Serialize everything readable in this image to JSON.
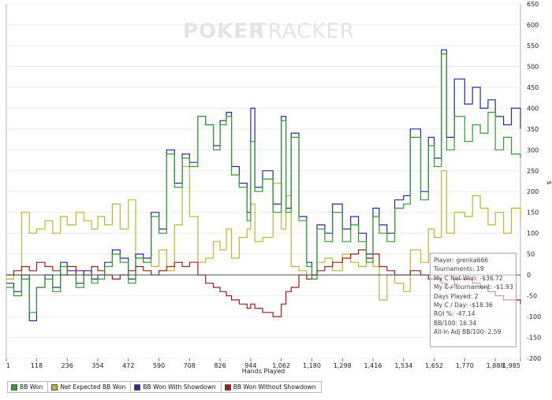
{
  "chart_data": {
    "type": "line",
    "title": "",
    "watermark": {
      "part1": "POKER",
      "part2": "TRACKER"
    },
    "xlabel": "Hands Played",
    "ylabel": "$",
    "xlim": [
      1,
      1985
    ],
    "ylim": [
      -200,
      650
    ],
    "x_ticks": [
      1,
      118,
      236,
      354,
      472,
      590,
      708,
      826,
      944,
      1062,
      1180,
      1298,
      1416,
      1534,
      1652,
      1770,
      1888,
      1985
    ],
    "x_tick_labels": [
      "1",
      "118",
      "236",
      "354",
      "472",
      "590",
      "708",
      "826",
      "944",
      "1,062",
      "1,180",
      "1,298",
      "1,416",
      "1,534",
      "1,652",
      "1,770",
      "1,888",
      "1,985"
    ],
    "y_ticks": [
      -200,
      -150,
      -100,
      -50,
      0,
      50,
      100,
      150,
      200,
      250,
      300,
      350,
      400,
      450,
      500,
      550,
      600,
      650
    ],
    "series": [
      {
        "name": "BB Won",
        "color": "#2e9e2e",
        "x": [
          1,
          30,
          60,
          90,
          118,
          150,
          180,
          210,
          236,
          270,
          300,
          330,
          354,
          380,
          410,
          440,
          472,
          500,
          530,
          560,
          590,
          620,
          650,
          680,
          708,
          740,
          770,
          800,
          826,
          850,
          870,
          900,
          930,
          944,
          960,
          990,
          1030,
          1062,
          1080,
          1100,
          1130,
          1160,
          1180,
          1200,
          1230,
          1260,
          1298,
          1330,
          1360,
          1390,
          1416,
          1440,
          1470,
          1500,
          1534,
          1560,
          1600,
          1630,
          1652,
          1680,
          1700,
          1730,
          1770,
          1800,
          1830,
          1860,
          1888,
          1920,
          1950,
          1985
        ],
        "values": [
          -30,
          -50,
          -10,
          -90,
          -30,
          -10,
          -40,
          20,
          0,
          -30,
          0,
          -20,
          -10,
          20,
          50,
          30,
          -20,
          40,
          30,
          140,
          100,
          290,
          210,
          280,
          260,
          380,
          360,
          300,
          360,
          380,
          240,
          210,
          130,
          320,
          200,
          230,
          150,
          370,
          150,
          330,
          130,
          20,
          -10,
          110,
          80,
          150,
          80,
          120,
          80,
          30,
          140,
          100,
          80,
          160,
          170,
          330,
          180,
          310,
          260,
          530,
          300,
          380,
          320,
          360,
          340,
          390,
          300,
          330,
          290,
          280
        ]
      },
      {
        "name": "Net Expected BB Won",
        "color": "#b8b830",
        "x": [
          1,
          30,
          60,
          90,
          118,
          150,
          180,
          210,
          236,
          270,
          300,
          330,
          354,
          380,
          410,
          440,
          472,
          500,
          530,
          560,
          590,
          620,
          650,
          680,
          708,
          740,
          770,
          800,
          826,
          850,
          870,
          900,
          930,
          944,
          960,
          990,
          1030,
          1062,
          1080,
          1100,
          1130,
          1160,
          1180,
          1200,
          1230,
          1260,
          1298,
          1330,
          1360,
          1390,
          1416,
          1440,
          1470,
          1500,
          1534,
          1560,
          1600,
          1630,
          1652,
          1680,
          1700,
          1730,
          1770,
          1800,
          1830,
          1860,
          1888,
          1920,
          1950,
          1985
        ],
        "values": [
          -10,
          0,
          150,
          100,
          110,
          130,
          100,
          140,
          120,
          150,
          130,
          110,
          140,
          120,
          170,
          110,
          180,
          40,
          30,
          20,
          60,
          10,
          120,
          260,
          140,
          30,
          40,
          80,
          60,
          110,
          40,
          90,
          110,
          170,
          80,
          90,
          220,
          110,
          190,
          20,
          10,
          0,
          -10,
          30,
          40,
          10,
          50,
          30,
          20,
          40,
          20,
          -60,
          0,
          -20,
          -40,
          60,
          30,
          110,
          90,
          250,
          100,
          150,
          140,
          190,
          160,
          120,
          150,
          100,
          160,
          130
        ]
      },
      {
        "name": "BB Won With Showdown",
        "color": "#2a2a9a",
        "x": [
          1,
          30,
          60,
          90,
          118,
          150,
          180,
          210,
          236,
          270,
          300,
          330,
          354,
          380,
          410,
          440,
          472,
          500,
          530,
          560,
          590,
          620,
          650,
          680,
          708,
          740,
          770,
          800,
          826,
          850,
          870,
          900,
          930,
          944,
          960,
          990,
          1030,
          1062,
          1080,
          1100,
          1130,
          1160,
          1180,
          1200,
          1230,
          1260,
          1298,
          1330,
          1360,
          1390,
          1416,
          1440,
          1470,
          1500,
          1534,
          1560,
          1600,
          1630,
          1652,
          1680,
          1700,
          1730,
          1770,
          1800,
          1830,
          1860,
          1888,
          1920,
          1950,
          1985
        ],
        "values": [
          -20,
          -40,
          0,
          -110,
          -30,
          0,
          -30,
          30,
          10,
          -20,
          10,
          -10,
          0,
          30,
          60,
          40,
          -10,
          50,
          40,
          150,
          110,
          300,
          220,
          290,
          270,
          380,
          360,
          310,
          370,
          390,
          260,
          220,
          150,
          400,
          210,
          250,
          170,
          380,
          160,
          340,
          140,
          30,
          0,
          120,
          100,
          170,
          110,
          140,
          100,
          50,
          160,
          120,
          100,
          180,
          190,
          350,
          200,
          330,
          280,
          540,
          330,
          470,
          410,
          450,
          400,
          420,
          380,
          360,
          400,
          350
        ]
      },
      {
        "name": "BB Won Without Showdown",
        "color": "#9a1e1e",
        "x": [
          1,
          30,
          60,
          90,
          118,
          150,
          180,
          210,
          236,
          270,
          300,
          330,
          354,
          380,
          410,
          440,
          472,
          500,
          530,
          560,
          590,
          620,
          650,
          680,
          708,
          740,
          770,
          800,
          826,
          850,
          870,
          900,
          930,
          944,
          960,
          990,
          1030,
          1062,
          1080,
          1100,
          1130,
          1160,
          1180,
          1200,
          1230,
          1260,
          1298,
          1330,
          1360,
          1390,
          1416,
          1440,
          1470,
          1500,
          1534,
          1560,
          1600,
          1630,
          1652,
          1680,
          1700,
          1730,
          1770,
          1800,
          1830,
          1860,
          1888,
          1920,
          1950,
          1985
        ],
        "values": [
          0,
          10,
          20,
          10,
          30,
          20,
          10,
          0,
          20,
          10,
          0,
          20,
          10,
          0,
          -10,
          0,
          10,
          20,
          10,
          0,
          10,
          20,
          30,
          20,
          30,
          0,
          -20,
          -30,
          -40,
          -50,
          -60,
          -70,
          -80,
          -70,
          -80,
          -90,
          -100,
          -70,
          -40,
          -30,
          0,
          -10,
          0,
          10,
          20,
          30,
          40,
          50,
          60,
          40,
          50,
          20,
          10,
          0,
          0,
          10,
          0,
          -10,
          -10,
          -20,
          -30,
          -10,
          -10,
          -20,
          -30,
          -40,
          -50,
          -60,
          -60,
          -70
        ]
      }
    ]
  },
  "stats": {
    "player": "Player: grenka666",
    "tournaments": "Tournaments: 19",
    "net_won": "My C Net Won: -$36.72",
    "per_tournament": "My C / Tournament: -$1.93",
    "days_played": "Days Played: 2",
    "per_day": "My C / Day: -$18.36",
    "roi": "ROI %: -47.14",
    "bb100": "BB/100: 16.34",
    "allin_bb100": "All-In Adj BB/100: 2.59"
  },
  "legend": [
    {
      "label": "BB Won",
      "color": "#2e9e2e"
    },
    {
      "label": "Net Expected BB Won",
      "color": "#b8b830"
    },
    {
      "label": "BB Won With Showdown",
      "color": "#2a2a9a"
    },
    {
      "label": "BB Won Without Showdown",
      "color": "#9a1e1e"
    }
  ]
}
